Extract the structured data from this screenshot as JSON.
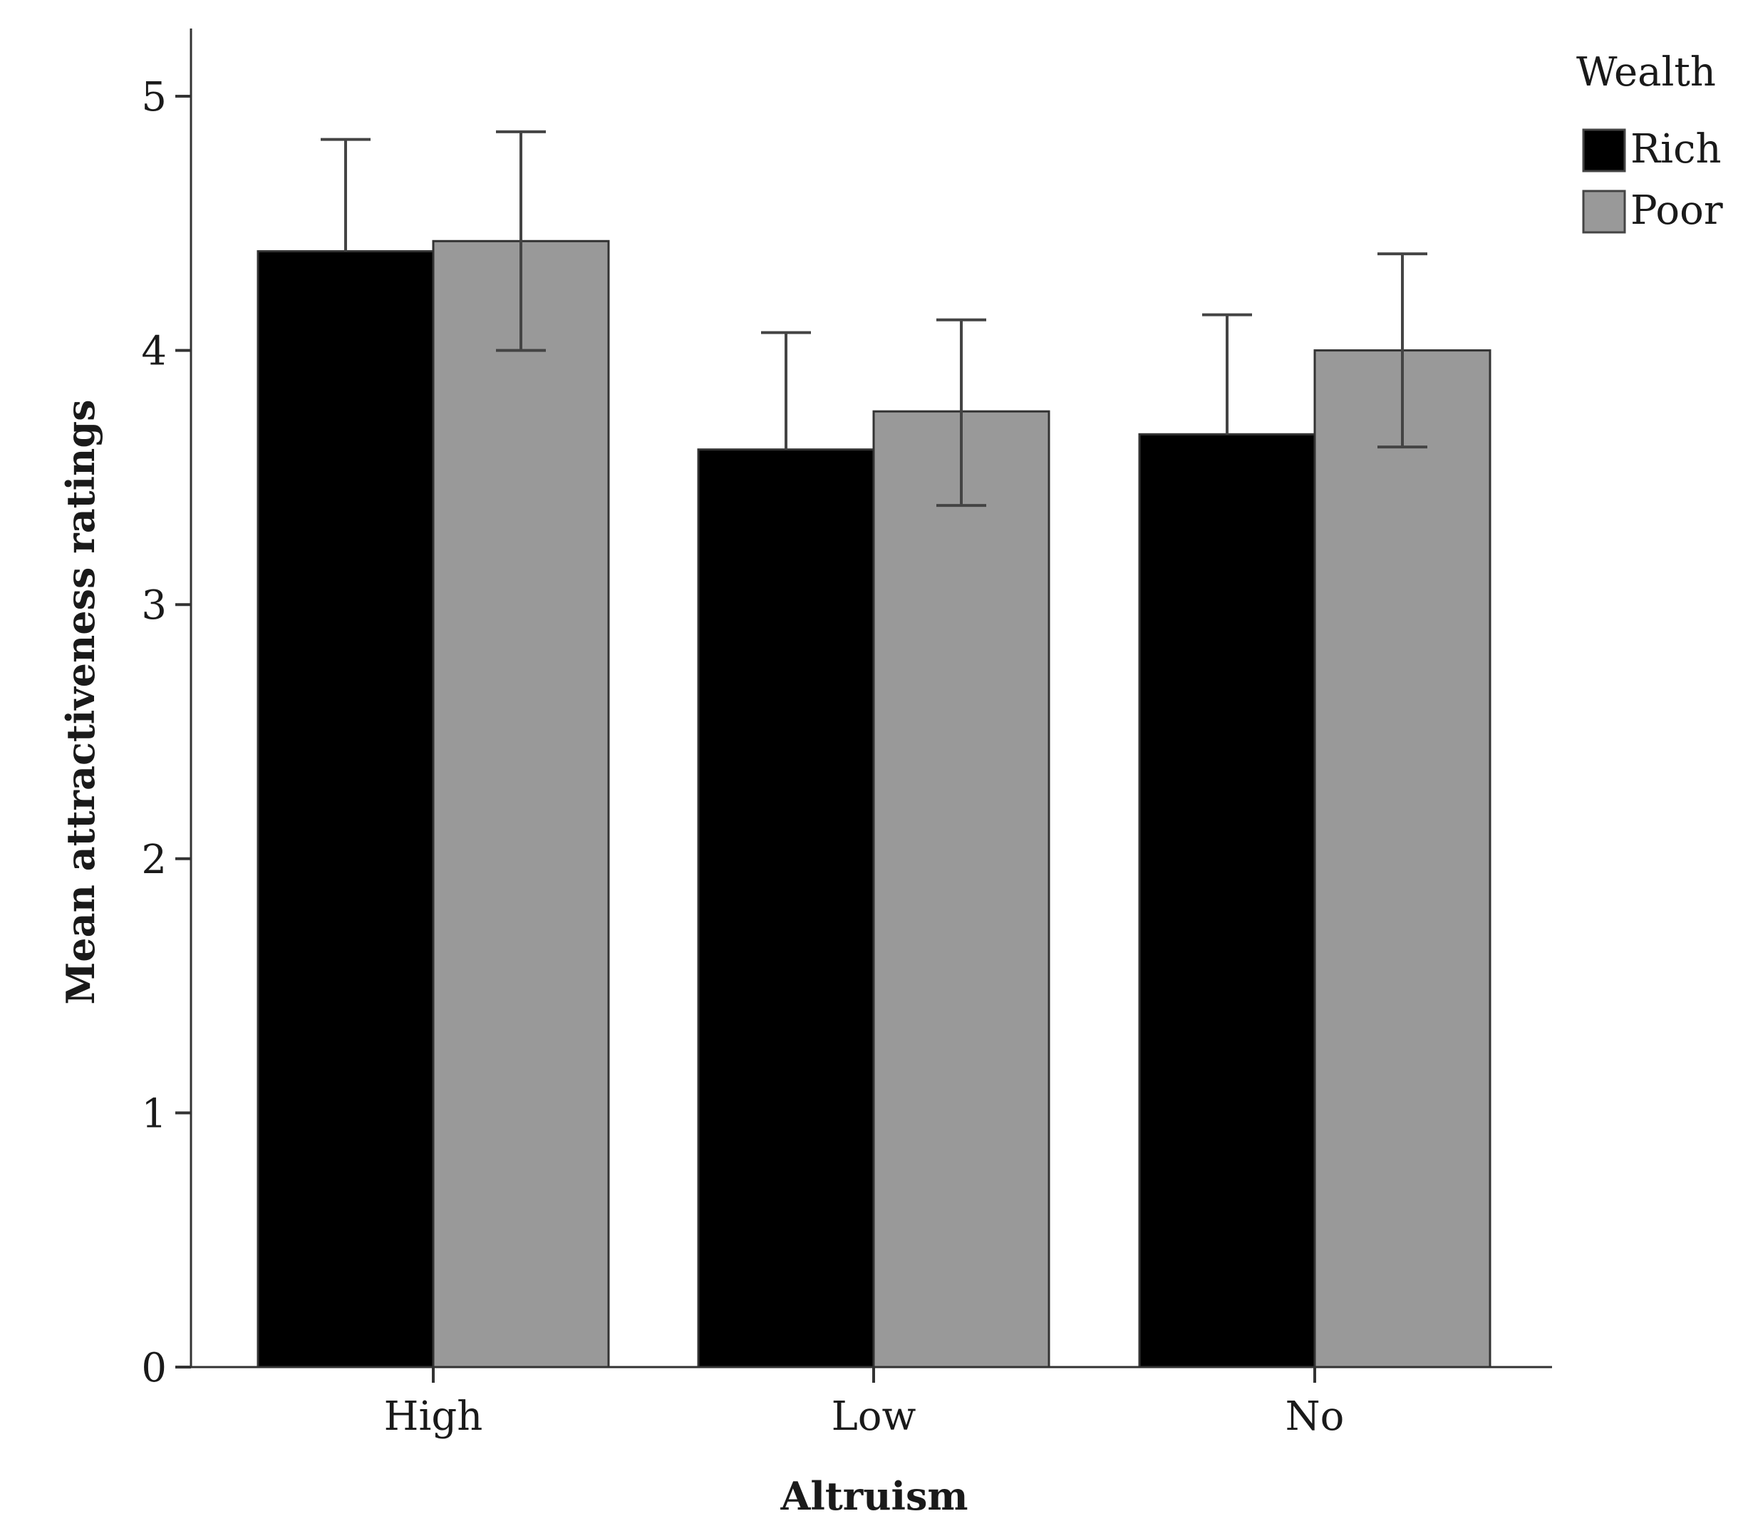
{
  "chart_data": {
    "type": "bar",
    "categories": [
      "High",
      "Low",
      "No"
    ],
    "series": [
      {
        "name": "Rich",
        "color": "#000000",
        "values": [
          4.39,
          3.61,
          3.67
        ],
        "error_upper": [
          4.83,
          4.07,
          4.14
        ]
      },
      {
        "name": "Poor",
        "color": "#999999",
        "values": [
          4.43,
          3.76,
          4.0
        ],
        "error_lower": [
          4.0,
          3.39,
          3.62
        ],
        "error_upper": [
          4.86,
          4.12,
          4.38
        ]
      }
    ],
    "xlabel": "Altruism",
    "ylabel": "Mean attractiveness ratings",
    "ylim": [
      0,
      5.25
    ],
    "yticks": [
      "0",
      "1",
      "2",
      "3",
      "4",
      "5"
    ],
    "grid": false,
    "legend": {
      "title": "Wealth",
      "placement": "top-right",
      "entries": [
        "Rich",
        "Poor"
      ]
    }
  }
}
